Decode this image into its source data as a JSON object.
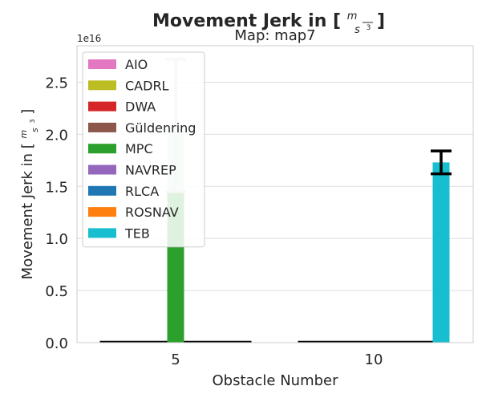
{
  "chart_data": {
    "type": "bar",
    "title_prefix": "Movement Jerk in [",
    "title_suffix": "]",
    "unit_num": "m",
    "unit_den": "s",
    "unit_exp": "3",
    "subtitle": "Map: map7",
    "xlabel": "Obstacle Number",
    "ylabel_prefix": "Movement Jerk in [",
    "ylabel_suffix": "]",
    "offset_text": "1e16",
    "categories": [
      "5",
      "10"
    ],
    "ylim": [
      0,
      2.85
    ],
    "yticks": [
      0.0,
      0.5,
      1.0,
      1.5,
      2.0,
      2.5
    ],
    "ytick_labels": [
      "0.0",
      "0.5",
      "1.0",
      "1.5",
      "2.0",
      "2.5"
    ],
    "grid": true,
    "legend_position": "upper-left",
    "series": [
      {
        "name": "AIO",
        "color": "#e377c2",
        "values": [
          0,
          0
        ],
        "err_low": [
          null,
          null
        ],
        "err_high": [
          null,
          null
        ]
      },
      {
        "name": "CADRL",
        "color": "#bcbd22",
        "values": [
          0,
          0
        ],
        "err_low": [
          null,
          null
        ],
        "err_high": [
          null,
          null
        ]
      },
      {
        "name": "DWA",
        "color": "#d62728",
        "values": [
          0,
          0
        ],
        "err_low": [
          null,
          null
        ],
        "err_high": [
          null,
          null
        ]
      },
      {
        "name": "Güldenring",
        "color": "#8c564b",
        "values": [
          0,
          0
        ],
        "err_low": [
          null,
          null
        ],
        "err_high": [
          null,
          null
        ]
      },
      {
        "name": "MPC",
        "color": "#2ca02c",
        "values": [
          2.09,
          0
        ],
        "err_low": [
          1.45,
          null
        ],
        "err_high": [
          2.72,
          null
        ]
      },
      {
        "name": "NAVREP",
        "color": "#9467bd",
        "values": [
          0,
          0
        ],
        "err_low": [
          null,
          null
        ],
        "err_high": [
          null,
          null
        ]
      },
      {
        "name": "RLCA",
        "color": "#1f77b4",
        "values": [
          0,
          0
        ],
        "err_low": [
          null,
          null
        ],
        "err_high": [
          null,
          null
        ]
      },
      {
        "name": "ROSNAV",
        "color": "#ff7f0e",
        "values": [
          0,
          0
        ],
        "err_low": [
          null,
          null
        ],
        "err_high": [
          null,
          null
        ]
      },
      {
        "name": "TEB",
        "color": "#17becf",
        "values": [
          0,
          1.73
        ],
        "err_low": [
          null,
          1.62
        ],
        "err_high": [
          null,
          1.84
        ]
      }
    ]
  }
}
